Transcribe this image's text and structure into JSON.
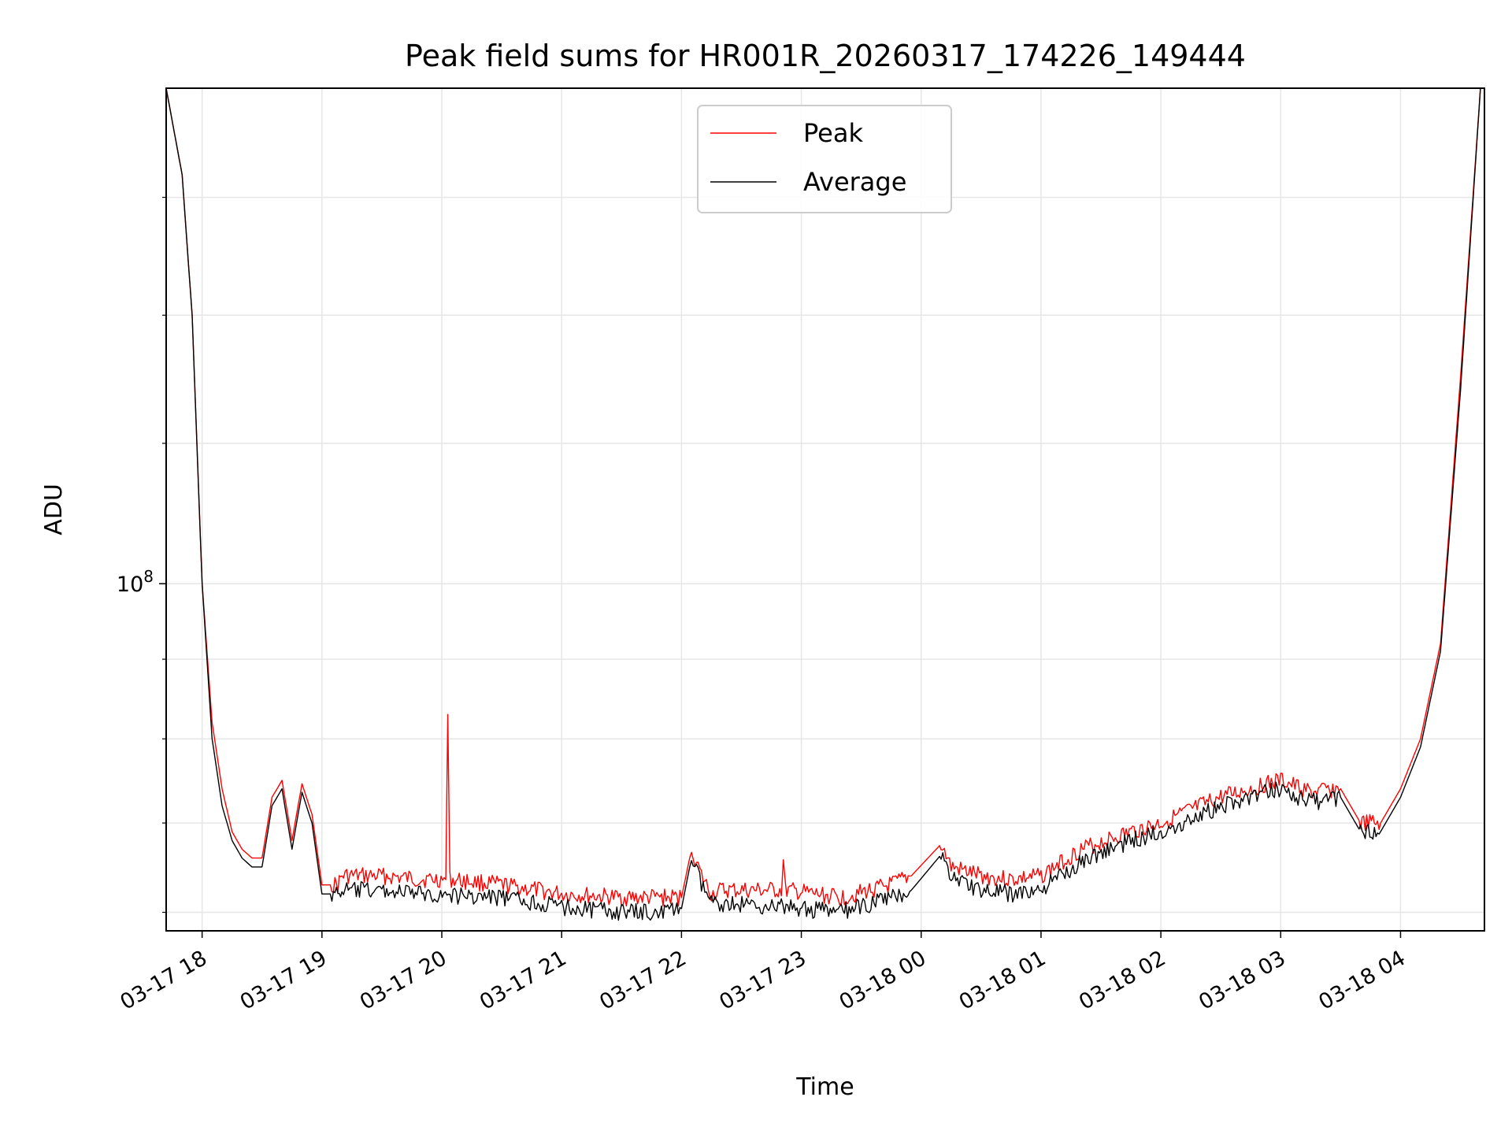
{
  "chart_data": {
    "type": "line",
    "title": "Peak field sums for HR001R_20260317_174226_149444",
    "xlabel": "Time",
    "ylabel": "ADU",
    "yscale": "log",
    "ylim": [
      79000000.0,
      140000000.0
    ],
    "xlim": [
      "2026-03-17 17:42",
      "2026-03-18 04:42"
    ],
    "x_ticks": [
      "03-17 18",
      "03-17 19",
      "03-17 20",
      "03-17 21",
      "03-17 22",
      "03-17 23",
      "03-18 00",
      "03-18 01",
      "03-18 02",
      "03-18 03",
      "03-18 04"
    ],
    "y_ticks": [
      {
        "value": 100000000.0,
        "label": "10^8"
      }
    ],
    "grid": true,
    "legend": {
      "placement": "upper-center"
    },
    "series": [
      {
        "name": "Peak",
        "color": "#ff0000",
        "x": [
          "2026-03-17 17:42",
          "2026-03-17 17:50",
          "2026-03-17 17:55",
          "2026-03-17 18:00",
          "2026-03-17 18:05",
          "2026-03-17 18:10",
          "2026-03-17 18:15",
          "2026-03-17 18:20",
          "2026-03-17 18:25",
          "2026-03-17 18:30",
          "2026-03-17 18:35",
          "2026-03-17 18:40",
          "2026-03-17 18:45",
          "2026-03-17 18:50",
          "2026-03-17 18:55",
          "2026-03-17 19:00",
          "2026-03-17 19:05",
          "2026-03-17 19:08",
          "2026-03-17 19:10",
          "2026-03-17 19:30",
          "2026-03-17 19:50",
          "2026-03-17 20:02",
          "2026-03-17 20:03",
          "2026-03-17 20:04",
          "2026-03-17 20:30",
          "2026-03-17 21:00",
          "2026-03-17 21:30",
          "2026-03-17 21:50",
          "2026-03-17 22:00",
          "2026-03-17 22:05",
          "2026-03-17 22:10",
          "2026-03-17 22:15",
          "2026-03-17 22:20",
          "2026-03-17 22:50",
          "2026-03-17 22:51",
          "2026-03-17 22:52",
          "2026-03-17 23:20",
          "2026-03-17 23:45",
          "2026-03-17 23:55",
          "2026-03-18 00:10",
          "2026-03-18 00:15",
          "2026-03-18 00:30",
          "2026-03-18 00:45",
          "2026-03-18 01:00",
          "2026-03-18 01:20",
          "2026-03-18 01:45",
          "2026-03-18 02:00",
          "2026-03-18 02:30",
          "2026-03-18 02:45",
          "2026-03-18 03:00",
          "2026-03-18 03:15",
          "2026-03-18 03:30",
          "2026-03-18 03:40",
          "2026-03-18 03:50",
          "2026-03-18 04:00",
          "2026-03-18 04:10",
          "2026-03-18 04:20",
          "2026-03-18 04:30",
          "2026-03-18 04:40"
        ],
        "y": [
          140000000.0,
          132000000.0,
          120000000.0,
          100000000.0,
          91000000.0,
          87000000.0,
          84500000.0,
          83500000.0,
          83000000.0,
          83000000.0,
          86500000.0,
          87500000.0,
          84000000.0,
          87300000.0,
          85500000.0,
          81500000.0,
          81500000.0,
          81500000.0,
          82000000.0,
          82000000.0,
          81800000.0,
          81800000.0,
          91500000.0,
          81800000.0,
          81500000.0,
          81000000.0,
          80800000.0,
          80800000.0,
          80800000.0,
          83500000.0,
          82000000.0,
          81000000.0,
          81200000.0,
          81200000.0,
          82800000.0,
          81200000.0,
          80800000.0,
          81500000.0,
          82000000.0,
          83800000.0,
          82500000.0,
          82000000.0,
          81800000.0,
          82000000.0,
          83500000.0,
          84500000.0,
          85000000.0,
          86500000.0,
          87000000.0,
          87500000.0,
          86800000.0,
          87000000.0,
          85000000.0,
          85000000.0,
          87000000.0,
          90000000.0,
          96000000.0,
          115000000.0,
          140000000.0
        ]
      },
      {
        "name": "Average",
        "color": "#000000",
        "x": [
          "2026-03-17 17:42",
          "2026-03-17 17:50",
          "2026-03-17 17:55",
          "2026-03-17 18:00",
          "2026-03-17 18:05",
          "2026-03-17 18:10",
          "2026-03-17 18:15",
          "2026-03-17 18:20",
          "2026-03-17 18:25",
          "2026-03-17 18:30",
          "2026-03-17 18:35",
          "2026-03-17 18:40",
          "2026-03-17 18:45",
          "2026-03-17 18:50",
          "2026-03-17 18:55",
          "2026-03-17 19:00",
          "2026-03-17 19:05",
          "2026-03-17 19:08",
          "2026-03-17 19:10",
          "2026-03-17 19:30",
          "2026-03-17 19:50",
          "2026-03-17 20:30",
          "2026-03-17 21:00",
          "2026-03-17 21:30",
          "2026-03-17 21:50",
          "2026-03-17 22:00",
          "2026-03-17 22:05",
          "2026-03-17 22:10",
          "2026-03-17 22:15",
          "2026-03-17 22:20",
          "2026-03-17 22:50",
          "2026-03-17 23:20",
          "2026-03-17 23:45",
          "2026-03-17 23:55",
          "2026-03-18 00:10",
          "2026-03-18 00:15",
          "2026-03-18 00:30",
          "2026-03-18 00:45",
          "2026-03-18 01:00",
          "2026-03-18 01:20",
          "2026-03-18 01:45",
          "2026-03-18 02:00",
          "2026-03-18 02:30",
          "2026-03-18 02:45",
          "2026-03-18 03:00",
          "2026-03-18 03:15",
          "2026-03-18 03:30",
          "2026-03-18 03:40",
          "2026-03-18 03:50",
          "2026-03-18 04:00",
          "2026-03-18 04:10",
          "2026-03-18 04:20",
          "2026-03-18 04:30",
          "2026-03-18 04:40"
        ],
        "y": [
          140000000.0,
          132000000.0,
          120000000.0,
          100000000.0,
          90000000.0,
          86000000.0,
          84000000.0,
          83000000.0,
          82500000.0,
          82500000.0,
          86000000.0,
          87000000.0,
          83500000.0,
          86800000.0,
          85000000.0,
          81000000.0,
          81000000.0,
          81000000.0,
          81200000.0,
          81200000.0,
          81000000.0,
          80800000.0,
          80300000.0,
          80000000.0,
          80000000.0,
          80200000.0,
          83000000.0,
          81500000.0,
          80500000.0,
          80500000.0,
          80300000.0,
          80000000.0,
          80800000.0,
          81200000.0,
          83200000.0,
          82000000.0,
          81200000.0,
          81000000.0,
          81200000.0,
          82800000.0,
          84000000.0,
          84500000.0,
          86000000.0,
          86500000.0,
          87000000.0,
          86200000.0,
          86500000.0,
          84500000.0,
          84500000.0,
          86500000.0,
          89500000.0,
          95500000.0,
          114000000.0,
          140000000.0
        ]
      }
    ]
  }
}
